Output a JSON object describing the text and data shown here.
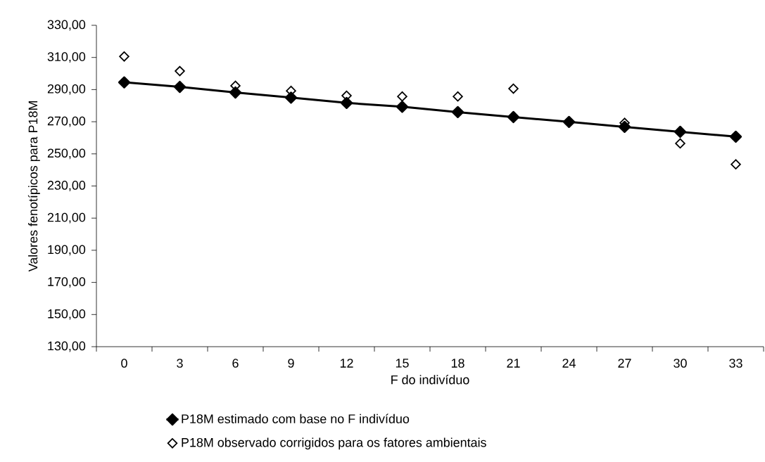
{
  "chart_data": {
    "type": "line",
    "xlabel": "F do indivíduo",
    "ylabel": "Valores fenotípicos para P18M",
    "categories": [
      "0",
      "3",
      "6",
      "9",
      "12",
      "15",
      "18",
      "21",
      "24",
      "27",
      "30",
      "33"
    ],
    "series": [
      {
        "name": "P18M estimado com base no F indivíduo",
        "type": "line",
        "color": "#000000",
        "marker": "diamond",
        "values": [
          294.5,
          291.7,
          288.2,
          285.0,
          281.7,
          279.3,
          276.0,
          272.9,
          269.9,
          266.8,
          263.7,
          260.7
        ]
      },
      {
        "name": "P18M observado corrigidos para os fatores ambientais",
        "type": "scatter",
        "color": "#000000",
        "marker": "diamond",
        "values": [
          310.6,
          301.5,
          292.4,
          289.2,
          286.2,
          285.7,
          285.7,
          290.6,
          null,
          269.3,
          256.5,
          243.5
        ]
      }
    ],
    "ylim": [
      130,
      330
    ],
    "yticks": [
      {
        "value": 130,
        "label": "130,00"
      },
      {
        "value": 150,
        "label": "150,00"
      },
      {
        "value": 170,
        "label": "170,00"
      },
      {
        "value": 190,
        "label": "190,00"
      },
      {
        "value": 210,
        "label": "210,00"
      },
      {
        "value": 230,
        "label": "230,00"
      },
      {
        "value": 250,
        "label": "250,00"
      },
      {
        "value": 270,
        "label": "270,00"
      },
      {
        "value": 290,
        "label": "290,00"
      },
      {
        "value": 310,
        "label": "310,00"
      },
      {
        "value": 330,
        "label": "330,00"
      }
    ],
    "grid": false,
    "legend": "bottom"
  }
}
